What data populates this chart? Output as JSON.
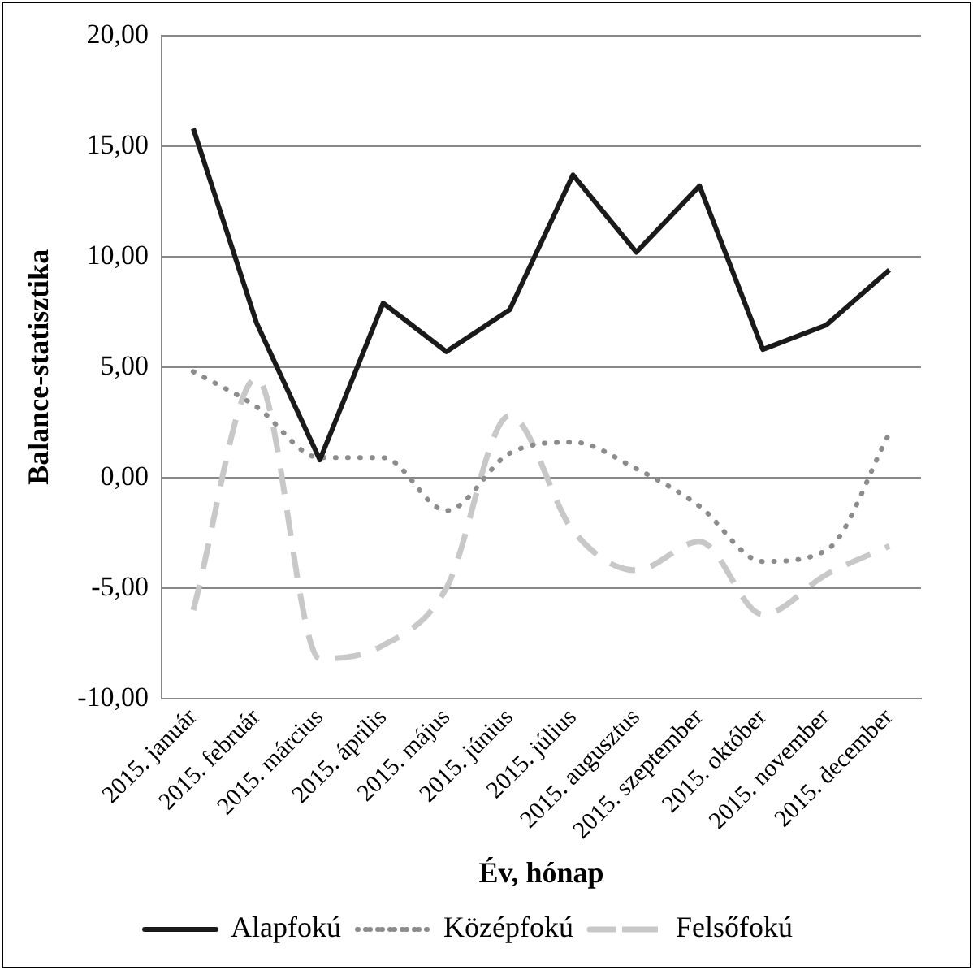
{
  "chart_data": {
    "type": "line",
    "xlabel": "Év, hónap",
    "ylabel": "Balance-statisztika",
    "categories": [
      "2015. január",
      "2015. február",
      "2015. március",
      "2015. április",
      "2015. május",
      "2015. június",
      "2015. július",
      "2015. augusztus",
      "2015. szeptember",
      "2015. október",
      "2015. november",
      "2015. december"
    ],
    "series": [
      {
        "name": "Alapfokú",
        "color": "#1a1a1a",
        "line_style": "solid",
        "values": [
          15.8,
          7.0,
          0.8,
          7.9,
          5.7,
          7.6,
          13.7,
          10.2,
          13.2,
          5.8,
          6.9,
          9.4
        ]
      },
      {
        "name": "Középfokú",
        "color": "#8c8c8c",
        "line_style": "dotted",
        "values": [
          4.8,
          3.2,
          0.9,
          0.9,
          -1.5,
          1.1,
          1.6,
          0.4,
          -1.3,
          -3.8,
          -3.3,
          2.0
        ]
      },
      {
        "name": "Felsőfokú",
        "color": "#c8c8c8",
        "line_style": "dashed",
        "values": [
          -6.0,
          4.5,
          -8.2,
          -7.6,
          -5.0,
          2.8,
          -2.4,
          -4.2,
          -2.9,
          -6.2,
          -4.4,
          -3.1
        ]
      }
    ],
    "ylim": [
      -10,
      20
    ],
    "yticks": [
      {
        "value": -10,
        "label": "-10,00"
      },
      {
        "value": -5,
        "label": "-5,00"
      },
      {
        "value": 0,
        "label": "0,00"
      },
      {
        "value": 5,
        "label": "5,00"
      },
      {
        "value": 10,
        "label": "10,00"
      },
      {
        "value": 15,
        "label": "15,00"
      },
      {
        "value": 20,
        "label": "20,00"
      }
    ],
    "grid": "y",
    "legend": "bottom",
    "marker": "none"
  }
}
